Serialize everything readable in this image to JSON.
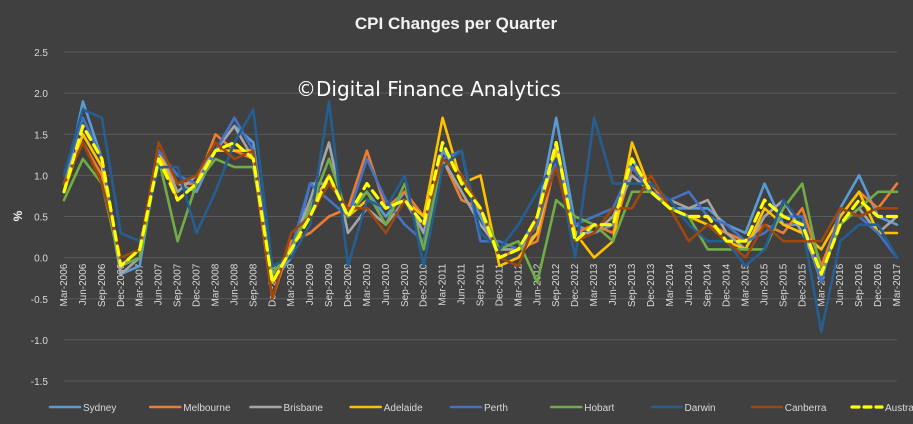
{
  "chart_data": {
    "type": "line",
    "title": "CPI Changes per Quarter",
    "watermark": "©Digital Finance Analytics",
    "ylabel": "%",
    "xlabel": "",
    "ylim": [
      -1.5,
      2.5
    ],
    "yticks": [
      "2.5",
      "2.0",
      "1.5",
      "1.0",
      "0.5",
      "0.0",
      "-0.5",
      "-1.0",
      "-1.5"
    ],
    "ytick_values": [
      2.5,
      2.0,
      1.5,
      1.0,
      0.5,
      0.0,
      -0.5,
      -1.0,
      -1.5
    ],
    "grid": true,
    "legend_position": "bottom",
    "x": [
      "Mar-2006",
      "Jun-2006",
      "Sep-2006",
      "Dec-2006",
      "Mar-2007",
      "Jun-2007",
      "Sep-2007",
      "Dec-2007",
      "Mar-2008",
      "Jun-2008",
      "Sep-2008",
      "Dec-2008",
      "Mar-2009",
      "Jun-2009",
      "Sep-2009",
      "Dec-2009",
      "Mar-2010",
      "Jun-2010",
      "Sep-2010",
      "Dec-2010",
      "Mar-2011",
      "Jun-2011",
      "Sep-2011",
      "Dec-2011",
      "Mar-2012",
      "Jun-2012",
      "Sep-2012",
      "Dec-2012",
      "Mar-2013",
      "Jun-2013",
      "Sep-2013",
      "Dec-2013",
      "Mar-2014",
      "Jun-2014",
      "Sep-2014",
      "Dec-2014",
      "Mar-2015",
      "Jun-2015",
      "Sep-2015",
      "Dec-2015",
      "Mar-2016",
      "Jun-2016",
      "Sep-2016",
      "Dec-2016",
      "Mar-2017"
    ],
    "x_tick_labels": [
      "Mar-2006",
      "Jun-2006",
      "Sep-2006",
      "Dec-2006",
      "Mar-2007",
      "Jun-2007",
      "Sep-2007",
      "Dec-2007",
      "Mar-2008",
      "Jun-2008",
      "Sep-2008",
      "Dec-2008",
      "Mar-2009",
      "Jun-2009",
      "Sep-2009",
      "Dec-2009",
      "Mar-2010",
      "Jun-2010",
      "Sep-2010",
      "Dec-2010",
      "Mar-2011",
      "Jun-2011",
      "Sep-2011",
      "Dec-2011",
      "Mar-2012",
      "Jun-2012",
      "Sep-2012",
      "Dec-2012",
      "Mar-2013",
      "Jun-2013",
      "Sep-2013",
      "Dec-2013",
      "Mar-2014",
      "Jun-2014",
      "Sep-2014",
      "Dec-2014",
      "Mar-2015",
      "Jun-2015",
      "Sep-2015",
      "Dec-2015",
      "Mar-2016",
      "Jun-2016",
      "Sep-2016",
      "Dec-2016",
      "Mar-2017"
    ],
    "series": [
      {
        "name": "Sydney",
        "color": "#5b9bd5",
        "dashed": false,
        "values": [
          0.8,
          1.9,
          1.2,
          -0.2,
          -0.1,
          1.3,
          0.9,
          0.8,
          1.3,
          1.6,
          1.4,
          -0.3,
          0.0,
          0.9,
          0.9,
          0.6,
          0.8,
          0.5,
          0.8,
          0.3,
          1.3,
          1.0,
          0.5,
          0.0,
          0.1,
          0.5,
          1.7,
          0.4,
          0.3,
          0.4,
          1.2,
          0.8,
          0.6,
          0.6,
          0.6,
          0.4,
          0.3,
          0.9,
          0.4,
          0.4,
          -0.3,
          0.6,
          1.0,
          0.5,
          0.4
        ]
      },
      {
        "name": "Melbourne",
        "color": "#ed7d31",
        "dashed": false,
        "values": [
          0.9,
          1.4,
          1.0,
          -0.1,
          0.1,
          1.2,
          0.9,
          0.9,
          1.5,
          1.3,
          1.2,
          -0.5,
          0.2,
          0.3,
          0.5,
          0.6,
          1.3,
          0.6,
          0.8,
          0.5,
          1.2,
          0.7,
          0.6,
          0.0,
          0.1,
          0.2,
          1.2,
          0.3,
          0.4,
          0.3,
          1.1,
          0.9,
          0.6,
          0.5,
          0.4,
          0.3,
          0.2,
          0.4,
          0.3,
          0.6,
          -0.1,
          0.5,
          0.8,
          0.6,
          0.9
        ]
      },
      {
        "name": "Brisbane",
        "color": "#a5a5a5",
        "dashed": false,
        "values": [
          0.9,
          1.5,
          1.1,
          -0.2,
          0.0,
          1.3,
          0.8,
          1.0,
          1.3,
          1.6,
          1.2,
          -0.3,
          0.1,
          0.7,
          1.4,
          0.3,
          0.6,
          0.4,
          0.7,
          0.3,
          1.2,
          0.8,
          0.4,
          0.1,
          0.1,
          0.3,
          1.4,
          0.3,
          0.3,
          0.5,
          1.0,
          0.8,
          0.7,
          0.6,
          0.7,
          0.3,
          0.1,
          0.5,
          0.7,
          0.3,
          -0.2,
          0.4,
          0.6,
          0.3,
          0.5
        ]
      },
      {
        "name": "Adelaide",
        "color": "#ffc000",
        "dashed": false,
        "values": [
          0.8,
          1.5,
          1.1,
          -0.1,
          0.1,
          1.3,
          0.7,
          0.9,
          1.3,
          1.3,
          1.3,
          -0.3,
          0.1,
          0.6,
          1.0,
          0.5,
          0.7,
          0.6,
          0.7,
          0.5,
          1.7,
          0.9,
          1.0,
          -0.1,
          0.0,
          0.3,
          1.3,
          0.3,
          0.0,
          0.2,
          1.4,
          0.8,
          0.6,
          0.5,
          0.4,
          0.2,
          0.1,
          0.6,
          0.4,
          0.3,
          0.1,
          0.5,
          0.8,
          0.3,
          0.3
        ]
      },
      {
        "name": "Perth",
        "color": "#4472c4",
        "dashed": false,
        "values": [
          1.0,
          1.7,
          1.2,
          -0.1,
          0.0,
          1.3,
          1.0,
          0.9,
          1.3,
          1.7,
          1.3,
          -0.2,
          0.1,
          0.9,
          0.7,
          0.5,
          1.2,
          0.7,
          0.4,
          0.2,
          1.2,
          1.3,
          0.2,
          0.2,
          0.1,
          0.4,
          1.2,
          0.4,
          0.5,
          0.6,
          1.1,
          0.8,
          0.7,
          0.8,
          0.5,
          0.4,
          0.2,
          0.3,
          0.5,
          0.5,
          -0.3,
          0.6,
          0.5,
          0.3,
          0.0
        ]
      },
      {
        "name": "Hobart",
        "color": "#70ad47",
        "dashed": false,
        "values": [
          0.7,
          1.2,
          0.9,
          -0.1,
          0.0,
          1.2,
          0.2,
          0.9,
          1.2,
          1.1,
          1.1,
          -0.2,
          0.1,
          0.6,
          1.2,
          0.5,
          0.8,
          0.4,
          0.9,
          0.1,
          1.2,
          1.0,
          0.6,
          0.1,
          0.2,
          -0.3,
          0.7,
          0.5,
          0.4,
          0.2,
          0.8,
          0.8,
          0.6,
          0.5,
          0.1,
          0.1,
          0.1,
          0.1,
          0.6,
          0.9,
          -0.2,
          0.4,
          0.6,
          0.8,
          0.8
        ]
      },
      {
        "name": "Darwin",
        "color": "#255e91",
        "dashed": false,
        "values": [
          1.0,
          1.8,
          1.7,
          0.3,
          0.2,
          1.1,
          1.1,
          0.3,
          0.8,
          1.4,
          1.8,
          -0.1,
          0.0,
          0.4,
          1.9,
          -0.1,
          0.7,
          0.6,
          1.0,
          -0.1,
          1.1,
          1.3,
          0.3,
          0.1,
          0.4,
          0.8,
          1.2,
          0.0,
          1.7,
          0.9,
          0.9,
          0.9,
          0.7,
          0.4,
          0.2,
          0.2,
          -0.1,
          0.1,
          0.7,
          0.4,
          -0.9,
          0.2,
          0.4,
          0.4,
          0.0
        ]
      },
      {
        "name": "Canberra",
        "color": "#9e480e",
        "dashed": false,
        "values": [
          0.9,
          1.4,
          0.9,
          0.0,
          0.1,
          1.4,
          0.9,
          1.0,
          1.4,
          1.2,
          1.3,
          -0.5,
          0.3,
          0.5,
          0.9,
          0.6,
          0.6,
          0.3,
          0.7,
          0.4,
          1.2,
          1.0,
          0.6,
          0.0,
          -0.1,
          0.5,
          1.1,
          0.2,
          0.3,
          0.6,
          0.6,
          1.0,
          0.6,
          0.2,
          0.4,
          0.2,
          0.0,
          0.4,
          0.2,
          0.2,
          0.2,
          0.6,
          0.5,
          0.6,
          0.6
        ]
      },
      {
        "name": "Australia",
        "color": "#ffff00",
        "dashed": true,
        "values": [
          0.8,
          1.6,
          1.2,
          -0.1,
          0.1,
          1.2,
          0.7,
          0.9,
          1.3,
          1.4,
          1.2,
          -0.3,
          0.1,
          0.5,
          1.0,
          0.5,
          0.9,
          0.6,
          0.7,
          0.4,
          1.4,
          0.9,
          0.6,
          0.0,
          0.1,
          0.5,
          1.4,
          0.2,
          0.4,
          0.4,
          1.2,
          0.8,
          0.6,
          0.5,
          0.5,
          0.2,
          0.2,
          0.7,
          0.5,
          0.4,
          -0.2,
          0.4,
          0.7,
          0.5,
          0.5
        ]
      }
    ]
  }
}
